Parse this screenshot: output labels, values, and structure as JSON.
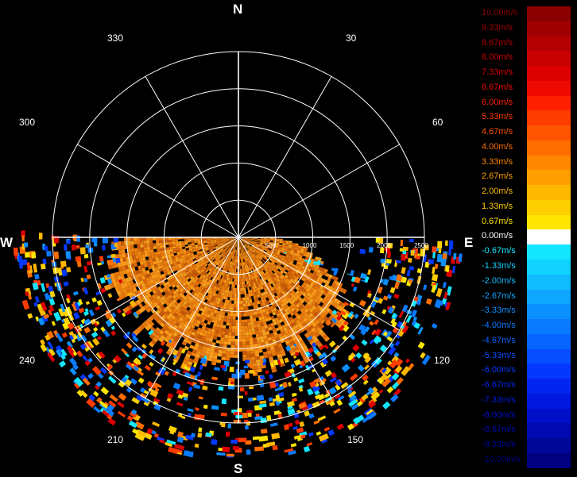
{
  "radar": {
    "cardinals": {
      "n": "N",
      "s": "S",
      "e": "E",
      "w": "W"
    },
    "angles": [
      "30",
      "60",
      "120",
      "150",
      "210",
      "240",
      "300",
      "330"
    ],
    "range_rings": [
      "500",
      "1000",
      "1500",
      "2000",
      "2500"
    ]
  },
  "colorbar": {
    "items": [
      {
        "label": "10.00m/s",
        "color": "#8b0000"
      },
      {
        "label": "9.33m/s",
        "color": "#a00000"
      },
      {
        "label": "8.67m/s",
        "color": "#b40000"
      },
      {
        "label": "8.00m/s",
        "color": "#c80000"
      },
      {
        "label": "7.33m/s",
        "color": "#dc0000"
      },
      {
        "label": "6.67m/s",
        "color": "#ee0a00"
      },
      {
        "label": "6.00m/s",
        "color": "#ff2000"
      },
      {
        "label": "5.33m/s",
        "color": "#ff3c00"
      },
      {
        "label": "4.67m/s",
        "color": "#ff5400"
      },
      {
        "label": "4.00m/s",
        "color": "#ff6e00"
      },
      {
        "label": "3.33m/s",
        "color": "#ff8800"
      },
      {
        "label": "2.67m/s",
        "color": "#ffa000"
      },
      {
        "label": "2.00m/s",
        "color": "#ffb800"
      },
      {
        "label": "1.33m/s",
        "color": "#ffd000"
      },
      {
        "label": "0.67m/s",
        "color": "#ffe600"
      },
      {
        "label": "0.00m/s",
        "color": "#ffffff"
      },
      {
        "label": "-0.67m/s",
        "color": "#14e6ff"
      },
      {
        "label": "-1.33m/s",
        "color": "#12d2ff"
      },
      {
        "label": "-2.00m/s",
        "color": "#10bcff"
      },
      {
        "label": "-2.67m/s",
        "color": "#0ea6ff"
      },
      {
        "label": "-3.33m/s",
        "color": "#0c90ff"
      },
      {
        "label": "-4.00m/s",
        "color": "#0a7aff"
      },
      {
        "label": "-4.67m/s",
        "color": "#0864ff"
      },
      {
        "label": "-5.33m/s",
        "color": "#064eff"
      },
      {
        "label": "-6.00m/s",
        "color": "#0438ff"
      },
      {
        "label": "-6.67m/s",
        "color": "#0226f0"
      },
      {
        "label": "-7.33m/s",
        "color": "#0018e0"
      },
      {
        "label": "-8.00m/s",
        "color": "#0010c8"
      },
      {
        "label": "-8.67m/s",
        "color": "#000ab0"
      },
      {
        "label": "-9.33m/s",
        "color": "#000698"
      },
      {
        "label": "-10.00m/s",
        "color": "#000080"
      }
    ]
  }
}
